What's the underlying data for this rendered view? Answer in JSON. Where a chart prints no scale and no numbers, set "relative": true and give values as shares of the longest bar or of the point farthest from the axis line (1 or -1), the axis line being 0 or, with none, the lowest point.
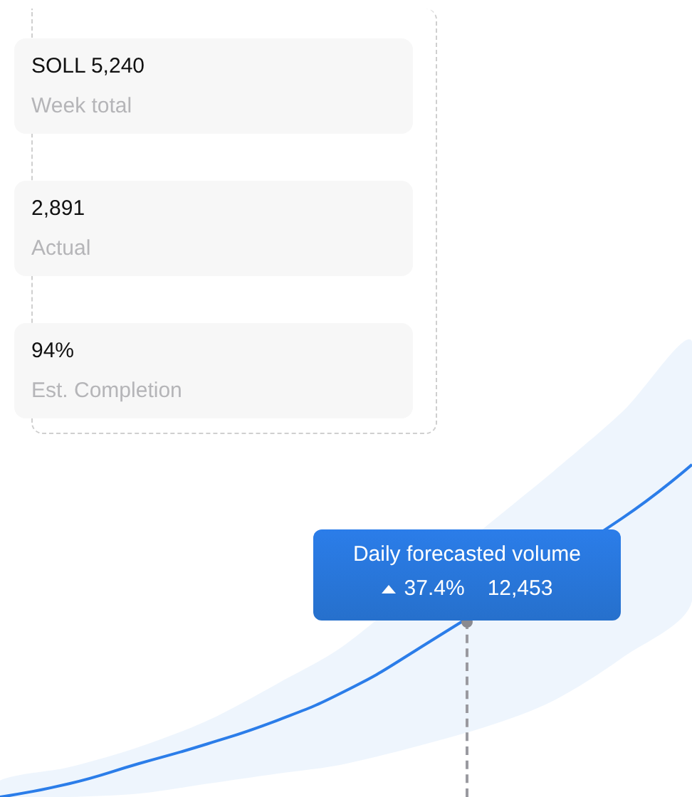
{
  "chart_data": [
    {
      "type": "other",
      "annotations": [
        "SOLL 5,240",
        "Week total",
        "2,891",
        "Actual",
        "94%",
        "Est. Completion"
      ]
    },
    {
      "type": "line",
      "relative": true,
      "categories": [
        null,
        null,
        null,
        null,
        null,
        null,
        null,
        null,
        null,
        null,
        null
      ],
      "series": [
        {
          "color": "#2b7de9",
          "values": [
            0,
            0.04,
            0.1,
            0.16,
            0.23,
            0.32,
            0.44,
            null,
            null,
            0.84,
            1
          ],
          "lower": [
            0,
            0,
            0.01,
            0.04,
            0.07,
            0.1,
            null,
            0.21,
            0.29,
            0.42,
            0.59
          ],
          "upper": [
            0.05,
            0.09,
            0.15,
            0.23,
            0.34,
            0.46,
            null,
            0.81,
            0.98,
            1.16,
            1.37
          ]
        }
      ],
      "annotations": [
        "Daily forecasted volume",
        "37.4%",
        "12,453"
      ],
      "marker": "none"
    }
  ]
}
